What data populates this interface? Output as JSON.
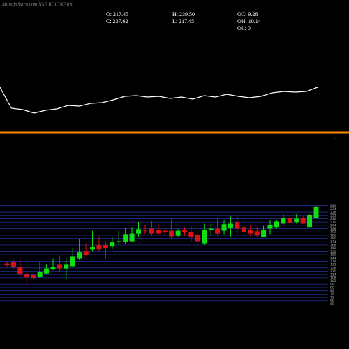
{
  "header": {
    "title": "MunafaSutra.com NSE ICICINF100",
    "stats": [
      "O: 217.45",
      "H: 239.50",
      "OC: 9.28",
      "C: 237.62",
      "L: 217.45",
      "OH: 10.14",
      "OL: 0"
    ]
  },
  "chart_data": [
    {
      "type": "line",
      "color": "#ffffff",
      "ylim": [
        0,
        100
      ],
      "values": [
        75,
        45,
        43,
        38,
        42,
        44,
        49,
        48,
        52,
        53,
        57,
        62,
        63,
        61,
        62,
        59,
        61,
        58,
        63,
        61,
        65,
        62,
        60,
        62,
        67,
        69,
        68,
        69,
        75
      ]
    },
    {
      "type": "candlestick",
      "up_color": "#11dd11",
      "down_color": "#dd1111",
      "grid_color": "#1f2f9a",
      "grid": true,
      "ylim": [
        58,
        246
      ],
      "yticks": [
        60,
        66,
        72,
        78,
        84,
        90,
        96,
        102,
        108,
        114,
        120,
        126,
        132,
        138,
        144,
        150,
        156,
        162,
        168,
        174,
        180,
        186,
        192,
        198,
        204,
        210,
        216,
        222,
        228,
        234,
        240
      ],
      "open": [
        134,
        136,
        127,
        114,
        113,
        109,
        116,
        124,
        133,
        125,
        129,
        143,
        156,
        160,
        168,
        168,
        165,
        173,
        174,
        175,
        189,
        196,
        198,
        196,
        194,
        194,
        185,
        196,
        191,
        187,
        171,
        196,
        198,
        194,
        200,
        210,
        201,
        196,
        193,
        183,
        198,
        201,
        207,
        217,
        210,
        217,
        201,
        217.45
      ],
      "high": [
        137,
        141,
        141,
        118,
        115,
        137,
        133,
        143,
        148,
        143,
        162,
        179,
        171,
        194,
        184,
        175,
        182,
        194,
        200,
        201,
        210,
        205,
        212,
        207,
        200,
        216,
        197,
        201,
        202,
        194,
        207,
        207,
        216,
        214,
        220,
        221,
        216,
        205,
        201,
        203,
        214,
        214,
        225,
        221,
        225,
        220,
        224,
        239.5
      ],
      "low": [
        128,
        125,
        111,
        95,
        105,
        108,
        115,
        122,
        118,
        105,
        127,
        141,
        148,
        156,
        156,
        143,
        160,
        169,
        170,
        173,
        182,
        188,
        185,
        185,
        185,
        180,
        182,
        185,
        175,
        166,
        168,
        184,
        185,
        188,
        184,
        188,
        185,
        184,
        182,
        182,
        188,
        198,
        205,
        205,
        207,
        206,
        201,
        217.45
      ],
      "close": [
        131,
        128,
        115,
        109,
        108,
        119,
        125,
        128,
        125,
        133,
        147,
        155,
        150,
        164,
        160,
        162,
        173,
        175,
        188,
        189,
        197,
        194,
        189,
        189,
        191,
        184,
        194,
        191,
        182,
        175,
        196,
        198,
        189,
        206,
        207,
        198,
        192,
        189,
        187,
        196,
        205,
        211,
        217,
        209,
        216,
        207,
        223,
        237.62
      ]
    }
  ]
}
